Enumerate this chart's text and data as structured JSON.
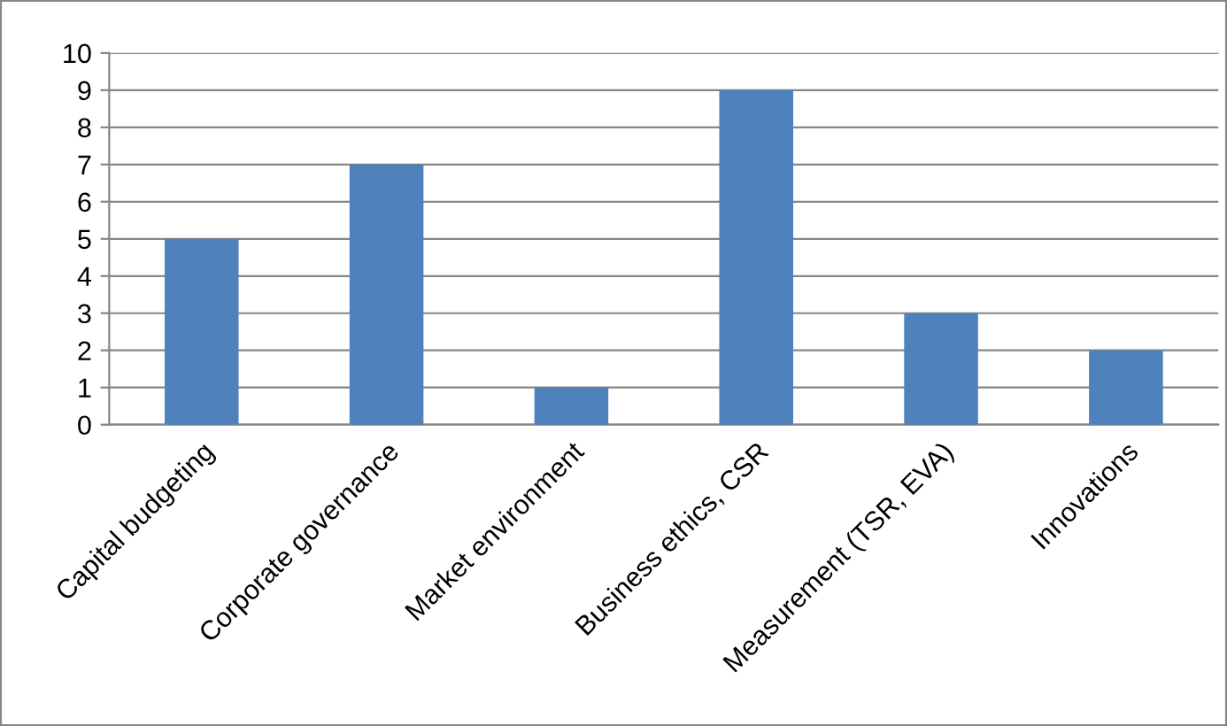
{
  "chart_data": {
    "type": "bar",
    "categories": [
      "Capital budgeting",
      "Corporate governance",
      "Market environment",
      "Business ethics, CSR",
      "Measurement (TSR, EVA)",
      "Innovations"
    ],
    "values": [
      5,
      7,
      1,
      9,
      3,
      2
    ],
    "color": "#4f81bd",
    "ylim": [
      0,
      10
    ],
    "yticks": [
      0,
      1,
      2,
      3,
      4,
      5,
      6,
      7,
      8,
      9,
      10
    ],
    "grid": "y"
  }
}
